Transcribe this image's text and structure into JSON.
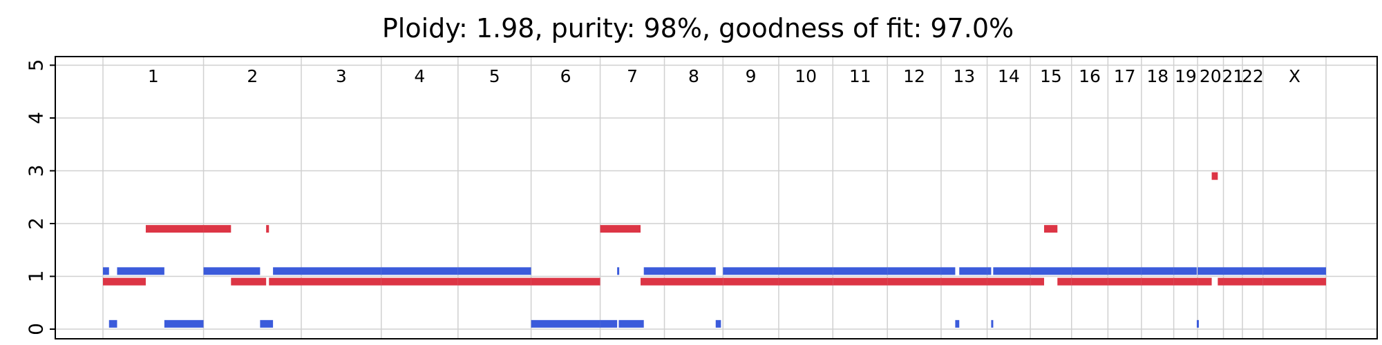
{
  "chart_data": {
    "type": "segment",
    "title": "Ploidy: 1.98, purity: 98%, goodness of fit: 97.0%",
    "xlabel": "",
    "ylabel": "",
    "ylim": [
      0,
      5
    ],
    "y_ticks": [
      0,
      1,
      2,
      3,
      4,
      5
    ],
    "grid": true,
    "colors": {
      "major": "#dc3545",
      "minor": "#3b5bdb",
      "grid": "#d0d0d0"
    },
    "chromosomes": [
      "1",
      "2",
      "3",
      "4",
      "5",
      "6",
      "7",
      "8",
      "9",
      "10",
      "11",
      "12",
      "13",
      "14",
      "15",
      "16",
      "17",
      "18",
      "19",
      "20",
      "21",
      "22",
      "X"
    ],
    "chromosome_lengths_mb": [
      249,
      242,
      198,
      190,
      181,
      171,
      159,
      145,
      138,
      134,
      135,
      133,
      114,
      107,
      102,
      90,
      83,
      80,
      59,
      64,
      47,
      51,
      156
    ],
    "series": [
      {
        "key": "major",
        "segments": [
          {
            "chrom": "1",
            "start": 0,
            "end": 106,
            "cn": 0.9
          },
          {
            "chrom": "1",
            "start": 106,
            "end": 249,
            "cn": 1.9
          },
          {
            "chrom": "2",
            "start": 0,
            "end": 68,
            "cn": 1.9
          },
          {
            "chrom": "2",
            "start": 68,
            "end": 155,
            "cn": 0.9
          },
          {
            "chrom": "2",
            "start": 155,
            "end": 162,
            "cn": 1.9
          },
          {
            "chrom": "2",
            "start": 162,
            "end": 242,
            "cn": 0.9
          },
          {
            "chrom": "3",
            "start": 0,
            "end": 198,
            "cn": 0.9
          },
          {
            "chrom": "4",
            "start": 0,
            "end": 190,
            "cn": 0.9
          },
          {
            "chrom": "5",
            "start": 0,
            "end": 181,
            "cn": 0.9
          },
          {
            "chrom": "6",
            "start": 0,
            "end": 171,
            "cn": 0.9
          },
          {
            "chrom": "7",
            "start": 0,
            "end": 100,
            "cn": 1.9
          },
          {
            "chrom": "7",
            "start": 100,
            "end": 159,
            "cn": 0.9
          },
          {
            "chrom": "8",
            "start": 0,
            "end": 145,
            "cn": 0.9
          },
          {
            "chrom": "9",
            "start": 0,
            "end": 138,
            "cn": 0.9
          },
          {
            "chrom": "10",
            "start": 0,
            "end": 134,
            "cn": 0.9
          },
          {
            "chrom": "11",
            "start": 0,
            "end": 135,
            "cn": 0.9
          },
          {
            "chrom": "12",
            "start": 0,
            "end": 133,
            "cn": 0.9
          },
          {
            "chrom": "13",
            "start": 0,
            "end": 114,
            "cn": 0.9
          },
          {
            "chrom": "14",
            "start": 0,
            "end": 107,
            "cn": 0.9
          },
          {
            "chrom": "15",
            "start": 0,
            "end": 34,
            "cn": 0.9
          },
          {
            "chrom": "15",
            "start": 34,
            "end": 67,
            "cn": 1.9
          },
          {
            "chrom": "15",
            "start": 67,
            "end": 102,
            "cn": 0.9
          },
          {
            "chrom": "16",
            "start": 0,
            "end": 90,
            "cn": 0.9
          },
          {
            "chrom": "17",
            "start": 0,
            "end": 83,
            "cn": 0.9
          },
          {
            "chrom": "18",
            "start": 0,
            "end": 80,
            "cn": 0.9
          },
          {
            "chrom": "19",
            "start": 0,
            "end": 59,
            "cn": 0.9
          },
          {
            "chrom": "20",
            "start": 0,
            "end": 35,
            "cn": 0.9
          },
          {
            "chrom": "20",
            "start": 35,
            "end": 50,
            "cn": 2.9
          },
          {
            "chrom": "20",
            "start": 50,
            "end": 64,
            "cn": 0.9
          },
          {
            "chrom": "21",
            "start": 0,
            "end": 47,
            "cn": 0.9
          },
          {
            "chrom": "22",
            "start": 0,
            "end": 51,
            "cn": 0.9
          },
          {
            "chrom": "X",
            "start": 0,
            "end": 156,
            "cn": 0.9
          }
        ]
      },
      {
        "key": "minor",
        "segments": [
          {
            "chrom": "1",
            "start": 0,
            "end": 15,
            "cn": 1.1
          },
          {
            "chrom": "1",
            "start": 15,
            "end": 35,
            "cn": 0.1
          },
          {
            "chrom": "1",
            "start": 35,
            "end": 152,
            "cn": 1.1
          },
          {
            "chrom": "1",
            "start": 152,
            "end": 249,
            "cn": 0.1
          },
          {
            "chrom": "2",
            "start": 0,
            "end": 140,
            "cn": 1.1
          },
          {
            "chrom": "2",
            "start": 140,
            "end": 172,
            "cn": 0.1
          },
          {
            "chrom": "2",
            "start": 172,
            "end": 242,
            "cn": 1.1
          },
          {
            "chrom": "3",
            "start": 0,
            "end": 198,
            "cn": 1.1
          },
          {
            "chrom": "4",
            "start": 0,
            "end": 190,
            "cn": 1.1
          },
          {
            "chrom": "5",
            "start": 0,
            "end": 181,
            "cn": 1.1
          },
          {
            "chrom": "6",
            "start": 0,
            "end": 171,
            "cn": 0.1
          },
          {
            "chrom": "7",
            "start": 0,
            "end": 42,
            "cn": 0.1
          },
          {
            "chrom": "7",
            "start": 42,
            "end": 46,
            "cn": 1.1
          },
          {
            "chrom": "7",
            "start": 46,
            "end": 108,
            "cn": 0.1
          },
          {
            "chrom": "7",
            "start": 108,
            "end": 159,
            "cn": 1.1
          },
          {
            "chrom": "8",
            "start": 0,
            "end": 127,
            "cn": 1.1
          },
          {
            "chrom": "8",
            "start": 127,
            "end": 140,
            "cn": 0.1
          },
          {
            "chrom": "9",
            "start": 0,
            "end": 138,
            "cn": 1.1
          },
          {
            "chrom": "10",
            "start": 0,
            "end": 134,
            "cn": 1.1
          },
          {
            "chrom": "11",
            "start": 0,
            "end": 135,
            "cn": 1.1
          },
          {
            "chrom": "12",
            "start": 0,
            "end": 133,
            "cn": 1.1
          },
          {
            "chrom": "13",
            "start": 0,
            "end": 35,
            "cn": 1.1
          },
          {
            "chrom": "13",
            "start": 35,
            "end": 45,
            "cn": 0.1
          },
          {
            "chrom": "13",
            "start": 45,
            "end": 114,
            "cn": 1.1
          },
          {
            "chrom": "14",
            "start": 0,
            "end": 10,
            "cn": 1.1
          },
          {
            "chrom": "14",
            "start": 10,
            "end": 15,
            "cn": 0.1
          },
          {
            "chrom": "14",
            "start": 15,
            "end": 107,
            "cn": 1.1
          },
          {
            "chrom": "15",
            "start": 0,
            "end": 102,
            "cn": 1.1
          },
          {
            "chrom": "16",
            "start": 0,
            "end": 90,
            "cn": 1.1
          },
          {
            "chrom": "17",
            "start": 0,
            "end": 83,
            "cn": 1.1
          },
          {
            "chrom": "18",
            "start": 0,
            "end": 80,
            "cn": 1.1
          },
          {
            "chrom": "19",
            "start": 0,
            "end": 57,
            "cn": 1.1
          },
          {
            "chrom": "19",
            "start": 57,
            "end": 59,
            "cn": 0.1
          },
          {
            "chrom": "20",
            "start": 0,
            "end": 64,
            "cn": 1.1
          },
          {
            "chrom": "21",
            "start": 0,
            "end": 47,
            "cn": 1.1
          },
          {
            "chrom": "22",
            "start": 0,
            "end": 51,
            "cn": 1.1
          },
          {
            "chrom": "X",
            "start": 0,
            "end": 156,
            "cn": 1.1
          }
        ]
      }
    ]
  }
}
